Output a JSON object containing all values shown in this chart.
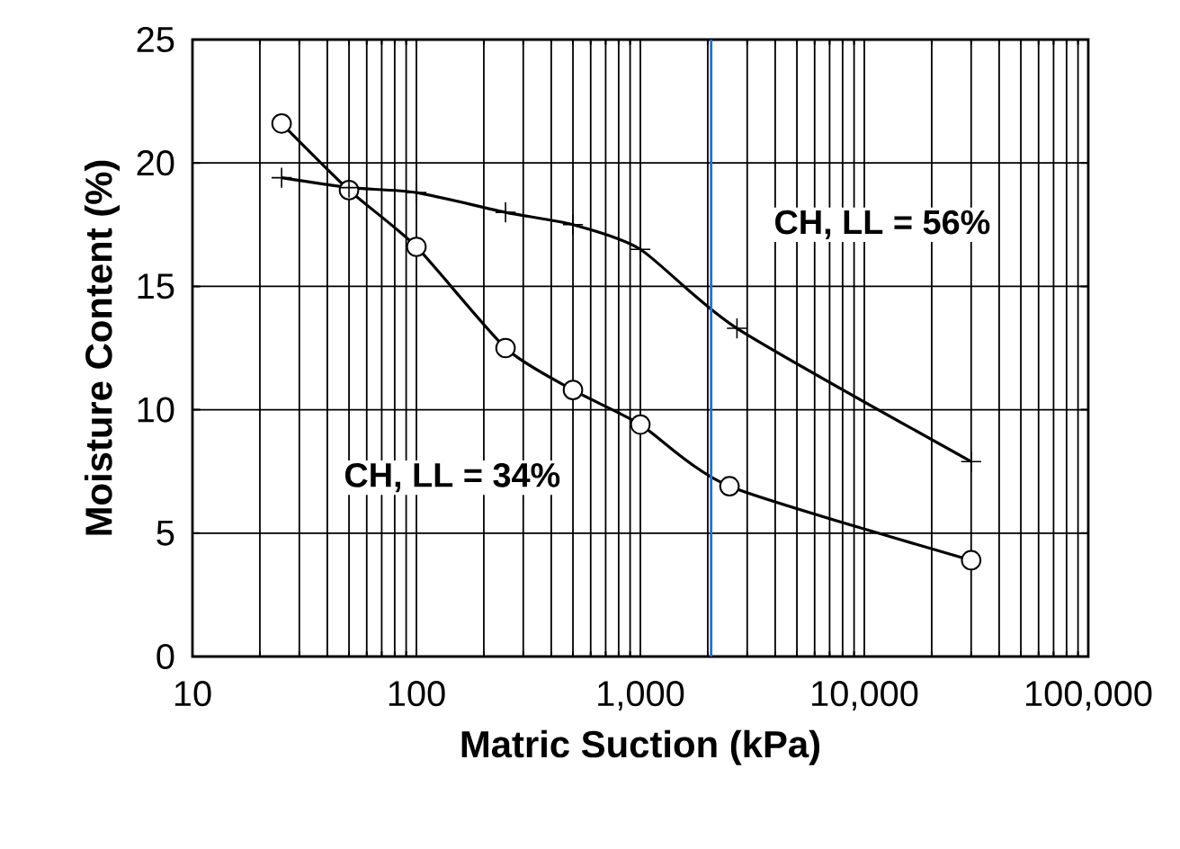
{
  "chart_data": {
    "type": "line",
    "xlabel": "Matric Suction (kPa)",
    "ylabel": "Moisture Content (%)",
    "log": "x",
    "xlim": [
      10,
      100000
    ],
    "xticks": [
      10,
      100,
      {
        "value": 1000,
        "label": "1,000"
      },
      {
        "value": 10000,
        "label": "10,000"
      },
      {
        "value": 100000,
        "label": "100,000"
      }
    ],
    "ylim": [
      0,
      25
    ],
    "yticks": [
      0,
      5,
      10,
      15,
      20,
      25
    ],
    "grid": true,
    "series": [
      {
        "name": "CH, LL = 34%",
        "color": "#000000",
        "marker": "circle",
        "x": [
          25,
          50,
          100,
          250,
          500,
          1000,
          2500,
          30000
        ],
        "values": [
          21.6,
          18.9,
          16.6,
          12.5,
          10.8,
          9.4,
          6.9,
          3.9
        ]
      },
      {
        "name": "CH, LL = 56%",
        "color": "#000000",
        "marker": "cross",
        "x": [
          25,
          50,
          100,
          250,
          500,
          1000,
          2700,
          30000
        ],
        "values": [
          19.4,
          19.0,
          18.8,
          18.0,
          17.5,
          16.5,
          13.3,
          7.9
        ]
      }
    ],
    "ref_lines": [
      {
        "axis": "x",
        "value": 2070,
        "color": "#1f6fe0"
      }
    ]
  }
}
